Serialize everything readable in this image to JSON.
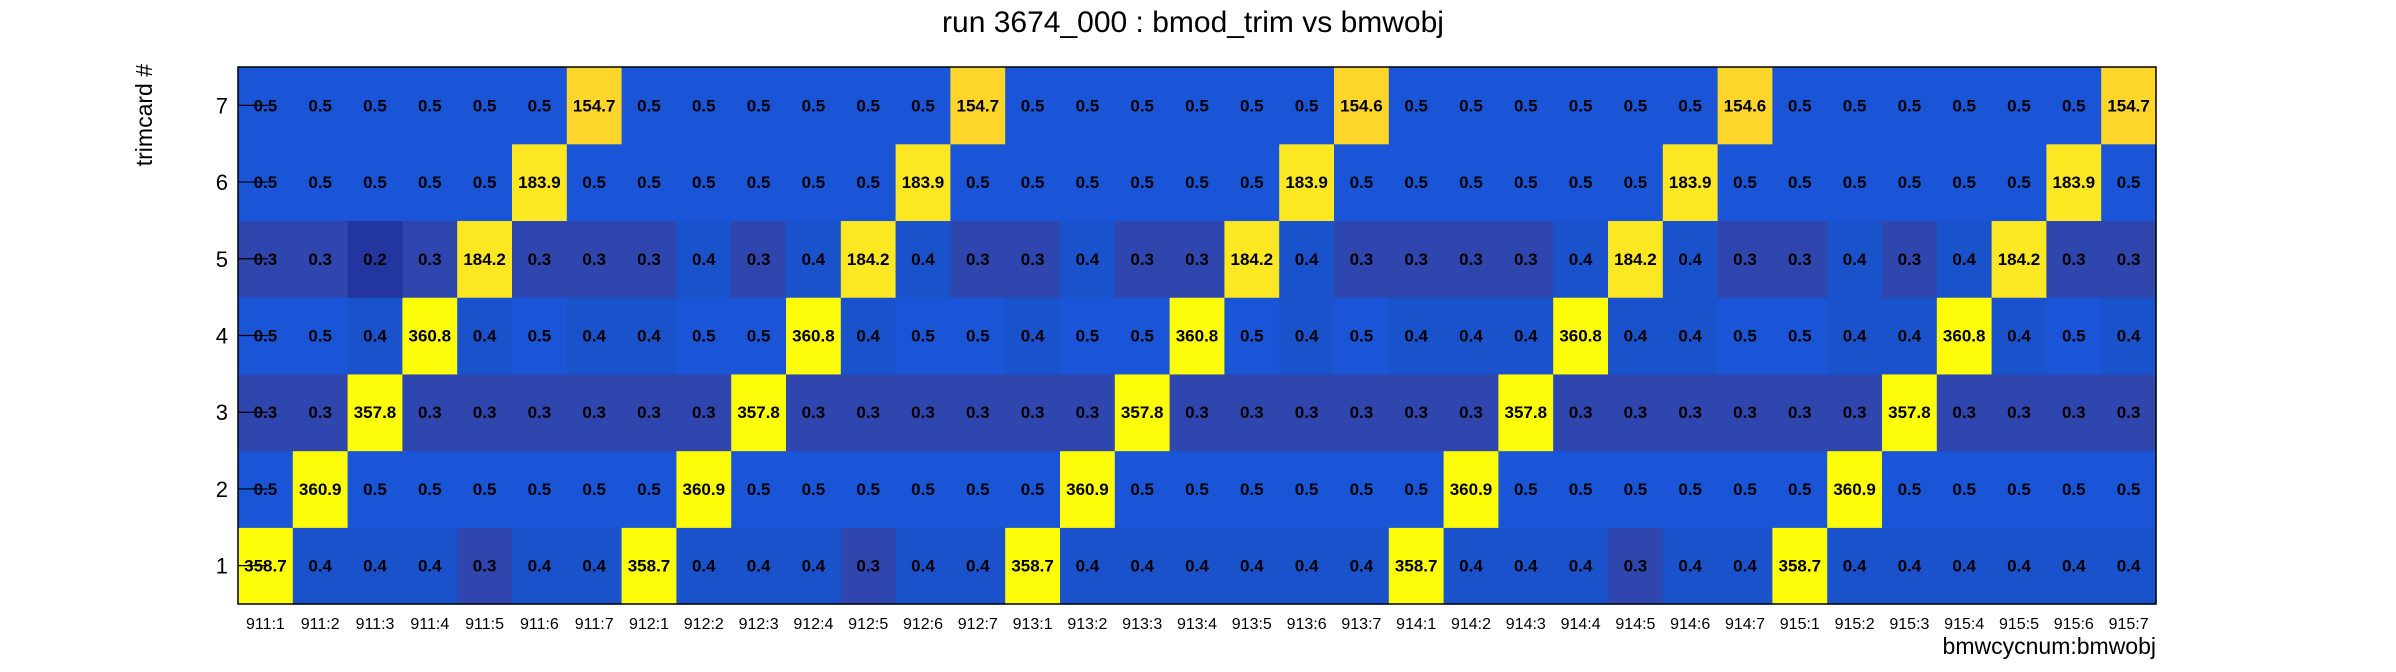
{
  "chart_data": {
    "type": "heatmap",
    "title": "run 3674_000 : bmod_trim vs bmwobj",
    "xlabel": "bmwcycnum:bmwobj",
    "ylabel": "trimcard #",
    "x_categories": [
      "911:1",
      "911:2",
      "911:3",
      "911:4",
      "911:5",
      "911:6",
      "911:7",
      "912:1",
      "912:2",
      "912:3",
      "912:4",
      "912:5",
      "912:6",
      "912:7",
      "913:1",
      "913:2",
      "913:3",
      "913:4",
      "913:5",
      "913:6",
      "913:7",
      "914:1",
      "914:2",
      "914:3",
      "914:4",
      "914:5",
      "914:6",
      "914:7",
      "915:1",
      "915:2",
      "915:3",
      "915:4",
      "915:5",
      "915:6",
      "915:7"
    ],
    "y_categories": [
      "1",
      "2",
      "3",
      "4",
      "5",
      "6",
      "7"
    ],
    "values": [
      [
        "358.7",
        "0.4",
        "0.4",
        "0.4",
        "0.3",
        "0.4",
        "0.4",
        "358.7",
        "0.4",
        "0.4",
        "0.4",
        "0.3",
        "0.4",
        "0.4",
        "358.7",
        "0.4",
        "0.4",
        "0.4",
        "0.4",
        "0.4",
        "0.4",
        "358.7",
        "0.4",
        "0.4",
        "0.4",
        "0.3",
        "0.4",
        "0.4",
        "358.7",
        "0.4",
        "0.4",
        "0.4",
        "0.4",
        "0.4",
        "0.4"
      ],
      [
        "0.5",
        "360.9",
        "0.5",
        "0.5",
        "0.5",
        "0.5",
        "0.5",
        "0.5",
        "360.9",
        "0.5",
        "0.5",
        "0.5",
        "0.5",
        "0.5",
        "0.5",
        "360.9",
        "0.5",
        "0.5",
        "0.5",
        "0.5",
        "0.5",
        "0.5",
        "360.9",
        "0.5",
        "0.5",
        "0.5",
        "0.5",
        "0.5",
        "0.5",
        "360.9",
        "0.5",
        "0.5",
        "0.5",
        "0.5",
        "0.5"
      ],
      [
        "0.3",
        "0.3",
        "357.8",
        "0.3",
        "0.3",
        "0.3",
        "0.3",
        "0.3",
        "0.3",
        "357.8",
        "0.3",
        "0.3",
        "0.3",
        "0.3",
        "0.3",
        "0.3",
        "357.8",
        "0.3",
        "0.3",
        "0.3",
        "0.3",
        "0.3",
        "0.3",
        "357.8",
        "0.3",
        "0.3",
        "0.3",
        "0.3",
        "0.3",
        "0.3",
        "357.8",
        "0.3",
        "0.3",
        "0.3",
        "0.3"
      ],
      [
        "0.5",
        "0.5",
        "0.4",
        "360.8",
        "0.4",
        "0.5",
        "0.4",
        "0.4",
        "0.5",
        "0.5",
        "360.8",
        "0.4",
        "0.5",
        "0.5",
        "0.4",
        "0.5",
        "0.5",
        "360.8",
        "0.5",
        "0.4",
        "0.5",
        "0.4",
        "0.4",
        "0.4",
        "360.8",
        "0.4",
        "0.4",
        "0.5",
        "0.5",
        "0.4",
        "0.4",
        "360.8",
        "0.4",
        "0.5",
        "0.4"
      ],
      [
        "0.3",
        "0.3",
        "0.2",
        "0.3",
        "184.2",
        "0.3",
        "0.3",
        "0.3",
        "0.4",
        "0.3",
        "0.4",
        "184.2",
        "0.4",
        "0.3",
        "0.3",
        "0.4",
        "0.3",
        "0.3",
        "184.2",
        "0.4",
        "0.3",
        "0.3",
        "0.3",
        "0.3",
        "0.4",
        "184.2",
        "0.4",
        "0.3",
        "0.3",
        "0.4",
        "0.3",
        "0.4",
        "184.2",
        "0.3",
        "0.3"
      ],
      [
        "0.5",
        "0.5",
        "0.5",
        "0.5",
        "0.5",
        "183.9",
        "0.5",
        "0.5",
        "0.5",
        "0.5",
        "0.5",
        "0.5",
        "183.9",
        "0.5",
        "0.5",
        "0.5",
        "0.5",
        "0.5",
        "0.5",
        "183.9",
        "0.5",
        "0.5",
        "0.5",
        "0.5",
        "0.5",
        "0.5",
        "183.9",
        "0.5",
        "0.5",
        "0.5",
        "0.5",
        "0.5",
        "0.5",
        "183.9",
        "0.5"
      ],
      [
        "0.5",
        "0.5",
        "0.5",
        "0.5",
        "0.5",
        "0.5",
        "154.7",
        "0.5",
        "0.5",
        "0.5",
        "0.5",
        "0.5",
        "0.5",
        "154.7",
        "0.5",
        "0.5",
        "0.5",
        "0.5",
        "0.5",
        "0.5",
        "154.6",
        "0.5",
        "0.5",
        "0.5",
        "0.5",
        "0.5",
        "0.5",
        "154.6",
        "0.5",
        "0.5",
        "0.5",
        "0.5",
        "0.5",
        "0.5",
        "154.7"
      ]
    ],
    "colors": {
      "cell_0_2": "#23359f",
      "cell_0_3": "#2e46ad",
      "cell_0_4": "#1a52cc",
      "cell_0_5": "#1955d6",
      "cell_150": "#fed62b",
      "cell_180": "#fbe722",
      "cell_360": "#fdfc09",
      "frame": "#000000"
    },
    "grid": false
  }
}
